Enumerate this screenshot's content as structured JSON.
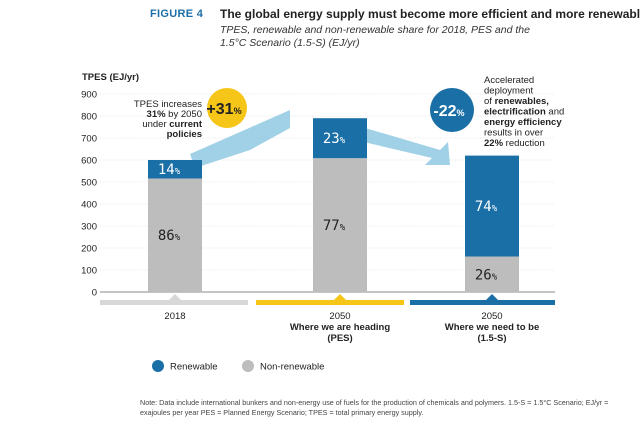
{
  "figure_label": "FIGURE 4",
  "title": "The global energy supply must become more efficient and more renewable",
  "subtitle": "TPES, renewable and non-renewable share for 2018, PES and the 1.5°C Scenario (1.5-S) (EJ/yr)",
  "note": "Note: Data include international bunkers and non-energy use of fuels for the production of chemicals and polymers. 1.5-S = 1.5°C Scenario; EJ/yr = exajoules per year PES = Planned Energy Scenario; TPES = total primary energy supply.",
  "colors": {
    "renewable": "#1a6fa6",
    "non_renewable": "#bdbdbd",
    "yellow": "#f5c518",
    "blue": "#1a6fa6",
    "grey_band": "#d8d8d8",
    "arrow": "#8fc9e3"
  },
  "chart_data": {
    "type": "bar",
    "stacked": true,
    "ylabel": "TPES (EJ/yr)",
    "ylim": [
      0,
      900
    ],
    "yticks": [
      0,
      100,
      200,
      300,
      400,
      500,
      600,
      700,
      800,
      900
    ],
    "grid": true,
    "categories": [
      {
        "line1": "2018",
        "line2": "",
        "line3": ""
      },
      {
        "line1": "2050",
        "line2": "Where we are heading",
        "line3": "(PES)"
      },
      {
        "line1": "2050",
        "line2": "Where we need to be",
        "line3": "(1.5-S)"
      }
    ],
    "totals": [
      600,
      790,
      620
    ],
    "series": [
      {
        "name": "Non-renewable",
        "share_labels": [
          "86",
          "77",
          "26"
        ],
        "shares": [
          0.86,
          0.77,
          0.26
        ]
      },
      {
        "name": "Renewable",
        "share_labels": [
          "14",
          "23",
          "74"
        ],
        "shares": [
          0.14,
          0.23,
          0.74
        ]
      }
    ],
    "percent_sign": "%",
    "legend": {
      "placement": "bottom-left",
      "items": [
        "Renewable",
        "Non-renewable"
      ]
    },
    "annotations": {
      "increase": {
        "value": "+31",
        "pct": "%",
        "lines": [
          "TPES increases",
          "31% by 2050",
          "under current",
          "policies"
        ]
      },
      "reduction": {
        "value": "-22",
        "pct": "%",
        "lines": [
          "Accelerated",
          "deployment",
          "of renewables,",
          "electrification and",
          "energy efficiency",
          "results in over",
          "22% reduction"
        ]
      }
    }
  }
}
